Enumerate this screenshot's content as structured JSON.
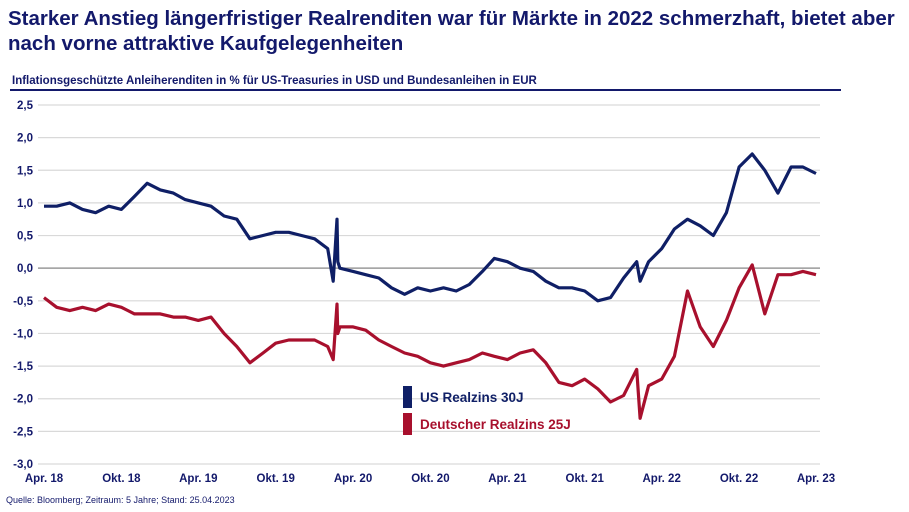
{
  "title": "Starker Anstieg längerfristiger Realrenditen war für Märkte in 2022 schmerzhaft, bietet aber nach vorne attraktive Kaufgelegenheiten",
  "subtitle": "Inflationsgeschützte Anleiherenditen in % für US-Treasuries in USD und Bundesanleihen in EUR",
  "source": "Quelle: Bloomberg; Zeitraum: 5 Jahre; Stand: 25.04.2023",
  "chart_data": {
    "type": "line",
    "title": "",
    "xlabel": "",
    "ylabel": "",
    "ylim": [
      -3.0,
      2.5
    ],
    "yticks": [
      "2,5",
      "2,0",
      "1,5",
      "1,0",
      "0,5",
      "0,0",
      "-0,5",
      "-1,0",
      "-1,5",
      "-2,0",
      "-2,5",
      "-3,0"
    ],
    "ytick_values": [
      2.5,
      2.0,
      1.5,
      1.0,
      0.5,
      0.0,
      -0.5,
      -1.0,
      -1.5,
      -2.0,
      -2.5,
      -3.0
    ],
    "xlim": [
      "2018-04-25",
      "2023-04-25"
    ],
    "xticks": [
      "Apr. 18",
      "Okt. 18",
      "Apr. 19",
      "Okt. 19",
      "Apr. 20",
      "Okt. 20",
      "Apr. 21",
      "Okt. 21",
      "Apr. 22",
      "Okt. 22",
      "Apr. 23"
    ],
    "xtick_dates": [
      "2018-04-25",
      "2018-10-25",
      "2019-04-25",
      "2019-10-25",
      "2020-04-25",
      "2020-10-25",
      "2021-04-25",
      "2021-10-25",
      "2022-04-25",
      "2022-10-25",
      "2023-04-25"
    ],
    "grid": true,
    "legend_position": "center-bottom",
    "series": [
      {
        "name": "US Realzins 30J",
        "color": "#0f1f66",
        "x": [
          "2018-04-25",
          "2018-05-25",
          "2018-06-25",
          "2018-07-25",
          "2018-08-25",
          "2018-09-25",
          "2018-10-25",
          "2018-11-25",
          "2018-12-25",
          "2019-01-25",
          "2019-02-25",
          "2019-03-25",
          "2019-04-25",
          "2019-05-25",
          "2019-06-25",
          "2019-07-25",
          "2019-08-25",
          "2019-09-25",
          "2019-10-25",
          "2019-11-25",
          "2019-12-25",
          "2020-01-25",
          "2020-02-25",
          "2020-03-09",
          "2020-03-18",
          "2020-03-20",
          "2020-03-25",
          "2020-04-25",
          "2020-05-25",
          "2020-06-25",
          "2020-07-25",
          "2020-08-25",
          "2020-09-25",
          "2020-10-25",
          "2020-11-25",
          "2020-12-25",
          "2021-01-25",
          "2021-02-25",
          "2021-03-25",
          "2021-04-25",
          "2021-05-25",
          "2021-06-25",
          "2021-07-25",
          "2021-08-25",
          "2021-09-25",
          "2021-10-25",
          "2021-11-25",
          "2021-12-25",
          "2022-01-25",
          "2022-02-25",
          "2022-03-05",
          "2022-03-25",
          "2022-04-25",
          "2022-05-25",
          "2022-06-25",
          "2022-07-25",
          "2022-08-25",
          "2022-09-25",
          "2022-10-25",
          "2022-11-25",
          "2022-12-25",
          "2023-01-25",
          "2023-02-25",
          "2023-03-25",
          "2023-04-25"
        ],
        "y": [
          0.95,
          0.95,
          1.0,
          0.9,
          0.85,
          0.95,
          0.9,
          1.1,
          1.3,
          1.2,
          1.15,
          1.05,
          1.0,
          0.95,
          0.8,
          0.75,
          0.45,
          0.5,
          0.55,
          0.55,
          0.5,
          0.45,
          0.3,
          -0.2,
          0.75,
          0.1,
          0.0,
          -0.05,
          -0.1,
          -0.15,
          -0.3,
          -0.4,
          -0.3,
          -0.35,
          -0.3,
          -0.35,
          -0.25,
          -0.05,
          0.15,
          0.1,
          0.0,
          -0.05,
          -0.2,
          -0.3,
          -0.3,
          -0.35,
          -0.5,
          -0.45,
          -0.15,
          0.1,
          -0.2,
          0.1,
          0.3,
          0.6,
          0.75,
          0.65,
          0.5,
          0.85,
          1.55,
          1.75,
          1.5,
          1.15,
          1.55,
          1.55,
          1.45
        ]
      },
      {
        "name": "Deutscher Realzins 25J",
        "color": "#a8102d",
        "x": [
          "2018-04-25",
          "2018-05-25",
          "2018-06-25",
          "2018-07-25",
          "2018-08-25",
          "2018-09-25",
          "2018-10-25",
          "2018-11-25",
          "2018-12-25",
          "2019-01-25",
          "2019-02-25",
          "2019-03-25",
          "2019-04-25",
          "2019-05-25",
          "2019-06-25",
          "2019-07-25",
          "2019-08-25",
          "2019-09-25",
          "2019-10-25",
          "2019-11-25",
          "2019-12-25",
          "2020-01-25",
          "2020-02-25",
          "2020-03-09",
          "2020-03-18",
          "2020-03-20",
          "2020-03-25",
          "2020-04-25",
          "2020-05-25",
          "2020-06-25",
          "2020-07-25",
          "2020-08-25",
          "2020-09-25",
          "2020-10-25",
          "2020-11-25",
          "2020-12-25",
          "2021-01-25",
          "2021-02-25",
          "2021-03-25",
          "2021-04-25",
          "2021-05-25",
          "2021-06-25",
          "2021-07-25",
          "2021-08-25",
          "2021-09-25",
          "2021-10-25",
          "2021-11-25",
          "2021-12-25",
          "2022-01-25",
          "2022-02-25",
          "2022-03-05",
          "2022-03-25",
          "2022-04-25",
          "2022-05-25",
          "2022-06-25",
          "2022-07-25",
          "2022-08-25",
          "2022-09-25",
          "2022-10-25",
          "2022-11-25",
          "2022-12-25",
          "2023-01-25",
          "2023-02-25",
          "2023-03-25",
          "2023-04-25"
        ],
        "y": [
          -0.45,
          -0.6,
          -0.65,
          -0.6,
          -0.65,
          -0.55,
          -0.6,
          -0.7,
          -0.7,
          -0.7,
          -0.75,
          -0.75,
          -0.8,
          -0.75,
          -1.0,
          -1.2,
          -1.45,
          -1.3,
          -1.15,
          -1.1,
          -1.1,
          -1.1,
          -1.2,
          -1.4,
          -0.55,
          -1.0,
          -0.9,
          -0.9,
          -0.95,
          -1.1,
          -1.2,
          -1.3,
          -1.35,
          -1.45,
          -1.5,
          -1.45,
          -1.4,
          -1.3,
          -1.35,
          -1.4,
          -1.3,
          -1.25,
          -1.45,
          -1.75,
          -1.8,
          -1.7,
          -1.85,
          -2.05,
          -1.95,
          -1.55,
          -2.3,
          -1.8,
          -1.7,
          -1.35,
          -0.35,
          -0.9,
          -1.2,
          -0.8,
          -0.3,
          0.05,
          -0.7,
          -0.1,
          -0.1,
          -0.05,
          -0.1
        ]
      }
    ]
  }
}
